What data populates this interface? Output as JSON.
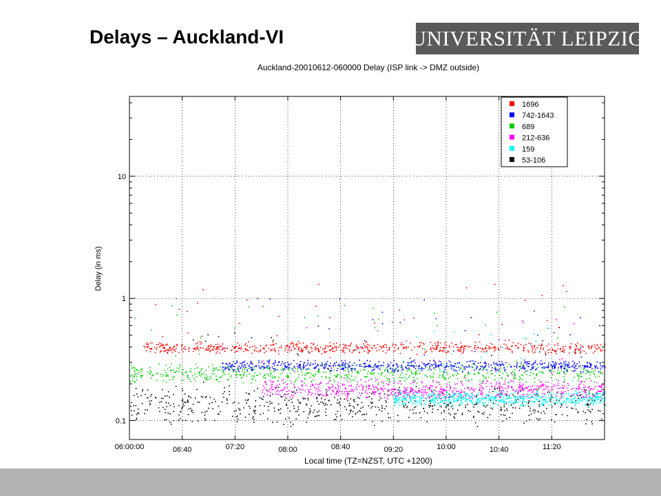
{
  "slide": {
    "title": "Delays – Auckland-VI",
    "logo_text": "UNIVERSITÄT LEIPZIG"
  },
  "colors": {
    "footer_bar": "#b3b3b3",
    "logo_background": "#5a5a5a",
    "series_1696": "#ff0000",
    "series_742_1643": "#0000ff",
    "series_689": "#00cc00",
    "series_212_636": "#ff00ff",
    "series_159": "#00ffff",
    "series_53_106": "#000000"
  },
  "chart_data": {
    "type": "scatter",
    "title": "Auckland-20010612-060000 Delay (ISP link -> DMZ outside)",
    "xlabel": "Local time (TZ=NZST, UTC +1200)",
    "ylabel": "Delay (in ms)",
    "y_scale": "log",
    "ylim": [
      0.07,
      45
    ],
    "xlim": [
      "06:00:00",
      "12:00"
    ],
    "x_tick_labels": [
      "06:00:00",
      "06:40",
      "07:20",
      "08:00",
      "08:40",
      "09:20",
      "10:00",
      "10:40",
      "11:20"
    ],
    "x_tick_values_min": [
      0,
      40,
      80,
      120,
      160,
      200,
      240,
      280,
      320
    ],
    "y_tick_labels": [
      "0.1",
      "1",
      "10"
    ],
    "y_tick_values": [
      0.1,
      1,
      10
    ],
    "grid": true,
    "legend_title": "",
    "legend_position": "top-right",
    "series": [
      {
        "name": "1696",
        "color": "#ff0000",
        "typical_delay_ms": [
          0.35,
          0.45
        ],
        "start_min": 10
      },
      {
        "name": "742-1643",
        "color": "#0000ff",
        "typical_delay_ms": [
          0.25,
          0.32
        ],
        "start_min": 70
      },
      {
        "name": "689",
        "color": "#00cc00",
        "typical_delay_ms": [
          0.2,
          0.3
        ],
        "start_min": 0
      },
      {
        "name": "212-636",
        "color": "#ff00ff",
        "typical_delay_ms": [
          0.15,
          0.22
        ],
        "start_min": 100
      },
      {
        "name": "159",
        "color": "#00ffff",
        "typical_delay_ms": [
          0.13,
          0.18
        ],
        "start_min": 200
      },
      {
        "name": "53-106",
        "color": "#000000",
        "typical_delay_ms": [
          0.09,
          0.2
        ],
        "start_min": 0
      }
    ]
  }
}
